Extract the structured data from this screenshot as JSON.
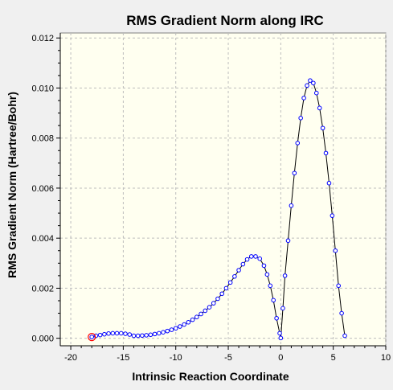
{
  "chart_data": {
    "type": "scatter",
    "title": "RMS Gradient Norm along IRC",
    "xlabel": "Intrinsic Reaction Coordinate",
    "ylabel": "RMS Gradient Norm (Hartree/Bohr)",
    "xlim": [
      -21,
      10
    ],
    "ylim": [
      -0.0003,
      0.0122
    ],
    "xticks": [
      -20,
      -15,
      -10,
      -5,
      0,
      5,
      10
    ],
    "xtick_labels": [
      "-20",
      "-15",
      "-10",
      "-5",
      "0",
      "5",
      "10"
    ],
    "yticks": [
      0.0,
      0.002,
      0.004,
      0.006,
      0.008,
      0.01,
      0.012
    ],
    "ytick_labels": [
      "0.000",
      "0.002",
      "0.004",
      "0.006",
      "0.008",
      "0.010",
      "0.012"
    ],
    "grid": true,
    "plot_background": "#fffff0",
    "line_color": "#000000",
    "marker_color": "#0000ff",
    "highlight_color": "#ff0000",
    "highlight_point": {
      "x": -18.0,
      "y": 5e-05
    },
    "series": [
      {
        "x": [
          -18.0,
          -17.6,
          -17.2,
          -16.8,
          -16.4,
          -16.0,
          -15.6,
          -15.2,
          -14.8,
          -14.4,
          -14.0,
          -13.6,
          -13.2,
          -12.8,
          -12.4,
          -12.0,
          -11.6,
          -11.2,
          -10.8,
          -10.4,
          -10.0,
          -9.6,
          -9.2,
          -8.8,
          -8.4,
          -8.0,
          -7.6,
          -7.2,
          -6.8,
          -6.4,
          -6.0,
          -5.6,
          -5.2,
          -4.8,
          -4.4,
          -4.0,
          -3.6,
          -3.2,
          -2.8,
          -2.4,
          -2.0,
          -1.6,
          -1.3,
          -1.0,
          -0.7,
          -0.4,
          -0.1,
          0.0,
          0.2,
          0.4,
          0.7,
          1.0,
          1.3,
          1.6,
          1.9,
          2.2,
          2.5,
          2.8,
          3.1,
          3.4,
          3.7,
          4.0,
          4.3,
          4.6,
          4.9,
          5.2,
          5.5,
          5.8,
          6.1
        ],
        "y": [
          5e-05,
          0.0001,
          0.00013,
          0.00016,
          0.00019,
          0.0002,
          0.0002,
          0.0002,
          0.00018,
          0.00015,
          0.0001,
          0.0001,
          0.00011,
          0.00012,
          0.00014,
          0.00017,
          0.0002,
          0.00024,
          0.00029,
          0.00034,
          0.0004,
          0.00047,
          0.00055,
          0.00064,
          0.00074,
          0.00085,
          0.00097,
          0.0011,
          0.00124,
          0.0014,
          0.00158,
          0.00178,
          0.002,
          0.00223,
          0.00247,
          0.00272,
          0.00296,
          0.00315,
          0.00327,
          0.00327,
          0.00318,
          0.0029,
          0.00255,
          0.0021,
          0.00152,
          0.0008,
          0.0002,
          1e-05,
          0.0012,
          0.0025,
          0.0039,
          0.0053,
          0.0066,
          0.0078,
          0.0088,
          0.0096,
          0.0101,
          0.0103,
          0.0102,
          0.0098,
          0.0092,
          0.0084,
          0.0074,
          0.0062,
          0.0049,
          0.0035,
          0.0021,
          0.001,
          0.0001
        ]
      }
    ]
  }
}
